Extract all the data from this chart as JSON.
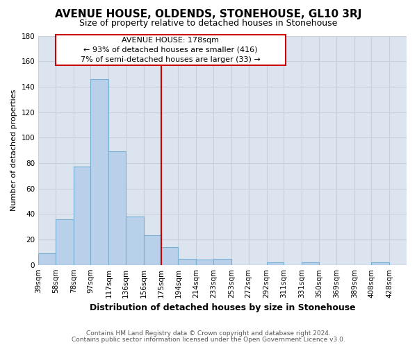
{
  "title": "AVENUE HOUSE, OLDENDS, STONEHOUSE, GL10 3RJ",
  "subtitle": "Size of property relative to detached houses in Stonehouse",
  "xlabel": "Distribution of detached houses by size in Stonehouse",
  "ylabel": "Number of detached properties",
  "categories": [
    "39sqm",
    "58sqm",
    "78sqm",
    "97sqm",
    "117sqm",
    "136sqm",
    "156sqm",
    "175sqm",
    "194sqm",
    "214sqm",
    "233sqm",
    "253sqm",
    "272sqm",
    "292sqm",
    "311sqm",
    "331sqm",
    "350sqm",
    "369sqm",
    "389sqm",
    "408sqm",
    "428sqm"
  ],
  "values": [
    9,
    36,
    77,
    146,
    89,
    38,
    23,
    14,
    5,
    4,
    5,
    0,
    0,
    2,
    0,
    2,
    0,
    0,
    0,
    2,
    0
  ],
  "bar_color": "#b8d0ea",
  "bar_edge_color": "#7aafd4",
  "vline_x_index": 7,
  "annotation_line1": "AVENUE HOUSE: 178sqm",
  "annotation_line2": "← 93% of detached houses are smaller (416)",
  "annotation_line3": "7% of semi-detached houses are larger (33) →",
  "annotation_box_color": "#ffffff",
  "annotation_box_edge": "#cc0000",
  "vline_color": "#cc0000",
  "ylim": [
    0,
    180
  ],
  "yticks": [
    0,
    20,
    40,
    60,
    80,
    100,
    120,
    140,
    160,
    180
  ],
  "grid_color": "#c8d0dc",
  "bg_color": "#dce4f0",
  "fig_bg_color": "#ffffff",
  "footer1": "Contains HM Land Registry data © Crown copyright and database right 2024.",
  "footer2": "Contains public sector information licensed under the Open Government Licence v3.0.",
  "title_fontsize": 11,
  "subtitle_fontsize": 9,
  "xlabel_fontsize": 9,
  "ylabel_fontsize": 8,
  "tick_fontsize": 7.5,
  "footer_fontsize": 6.5,
  "annotation_fontsize": 8
}
